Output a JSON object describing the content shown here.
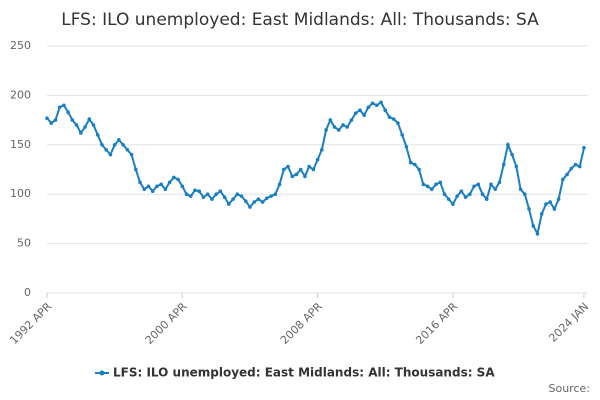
{
  "chart_data": {
    "type": "line",
    "title": "LFS: ILO unemployed: East Midlands: All: Thousands: SA",
    "source": "Source:",
    "x": [
      "1992 APR",
      "1992 JUL",
      "1992 OCT",
      "1993 JAN",
      "1993 APR",
      "1993 JUL",
      "1993 OCT",
      "1994 JAN",
      "1994 APR",
      "1994 JUL",
      "1994 OCT",
      "1995 JAN",
      "1995 APR",
      "1995 JUL",
      "1995 OCT",
      "1996 JAN",
      "1996 APR",
      "1996 JUL",
      "1996 OCT",
      "1997 JAN",
      "1997 APR",
      "1997 JUL",
      "1997 OCT",
      "1998 JAN",
      "1998 APR",
      "1998 JUL",
      "1998 OCT",
      "1999 JAN",
      "1999 APR",
      "1999 JUL",
      "1999 OCT",
      "2000 JAN",
      "2000 APR",
      "2000 JUL",
      "2000 OCT",
      "2001 JAN",
      "2001 APR",
      "2001 JUL",
      "2001 OCT",
      "2002 JAN",
      "2002 APR",
      "2002 JUL",
      "2002 OCT",
      "2003 JAN",
      "2003 APR",
      "2003 JUL",
      "2003 OCT",
      "2004 JAN",
      "2004 APR",
      "2004 JUL",
      "2004 OCT",
      "2005 JAN",
      "2005 APR",
      "2005 JUL",
      "2005 OCT",
      "2006 JAN",
      "2006 APR",
      "2006 JUL",
      "2006 OCT",
      "2007 JAN",
      "2007 APR",
      "2007 JUL",
      "2007 OCT",
      "2008 JAN",
      "2008 APR",
      "2008 JUL",
      "2008 OCT",
      "2009 JAN",
      "2009 APR",
      "2009 JUL",
      "2009 OCT",
      "2010 JAN",
      "2010 APR",
      "2010 JUL",
      "2010 OCT",
      "2011 JAN",
      "2011 APR",
      "2011 JUL",
      "2011 OCT",
      "2012 JAN",
      "2012 APR",
      "2012 JUL",
      "2012 OCT",
      "2013 JAN",
      "2013 APR",
      "2013 JUL",
      "2013 OCT",
      "2014 JAN",
      "2014 APR",
      "2014 JUL",
      "2014 OCT",
      "2015 JAN",
      "2015 APR",
      "2015 JUL",
      "2015 OCT",
      "2016 JAN",
      "2016 APR",
      "2016 JUL",
      "2016 OCT",
      "2017 JAN",
      "2017 APR",
      "2017 JUL",
      "2017 OCT",
      "2018 JAN",
      "2018 APR",
      "2018 JUL",
      "2018 OCT",
      "2019 JAN",
      "2019 APR",
      "2019 JUL",
      "2019 OCT",
      "2020 JAN",
      "2020 APR",
      "2020 JUL",
      "2020 OCT",
      "2021 JAN",
      "2021 APR",
      "2021 JUL",
      "2021 OCT",
      "2022 JAN",
      "2022 APR",
      "2022 JUL",
      "2022 OCT",
      "2023 JAN",
      "2023 APR",
      "2023 JUL",
      "2023 OCT",
      "2024 JAN"
    ],
    "series": [
      {
        "name": "LFS: ILO unemployed: East Midlands: All: Thousands: SA",
        "color": "#1a7fbf",
        "values": [
          177,
          172,
          175,
          188,
          190,
          183,
          175,
          170,
          162,
          168,
          176,
          170,
          160,
          150,
          145,
          140,
          150,
          155,
          150,
          145,
          140,
          125,
          112,
          105,
          108,
          103,
          108,
          110,
          105,
          112,
          117,
          115,
          108,
          100,
          98,
          104,
          103,
          97,
          100,
          95,
          100,
          103,
          97,
          90,
          95,
          100,
          98,
          93,
          87,
          92,
          95,
          92,
          96,
          98,
          100,
          110,
          125,
          128,
          118,
          120,
          125,
          118,
          128,
          125,
          135,
          145,
          165,
          175,
          168,
          165,
          170,
          168,
          175,
          182,
          185,
          180,
          188,
          192,
          190,
          193,
          185,
          178,
          176,
          172,
          160,
          148,
          132,
          130,
          125,
          110,
          108,
          105,
          110,
          112,
          100,
          95,
          90,
          98,
          103,
          97,
          100,
          108,
          110,
          100,
          95,
          110,
          105,
          112,
          130,
          150,
          140,
          128,
          105,
          100,
          85,
          68,
          60,
          80,
          90,
          92,
          85,
          95,
          115,
          120,
          126,
          130,
          128,
          147
        ]
      }
    ],
    "xticks": [
      "1992 APR",
      "2000 APR",
      "2008 APR",
      "2016 APR",
      "2024 JAN"
    ],
    "ylim": [
      0,
      250
    ],
    "yticks": [
      0,
      50,
      100,
      150,
      200,
      250
    ],
    "grid": true
  }
}
